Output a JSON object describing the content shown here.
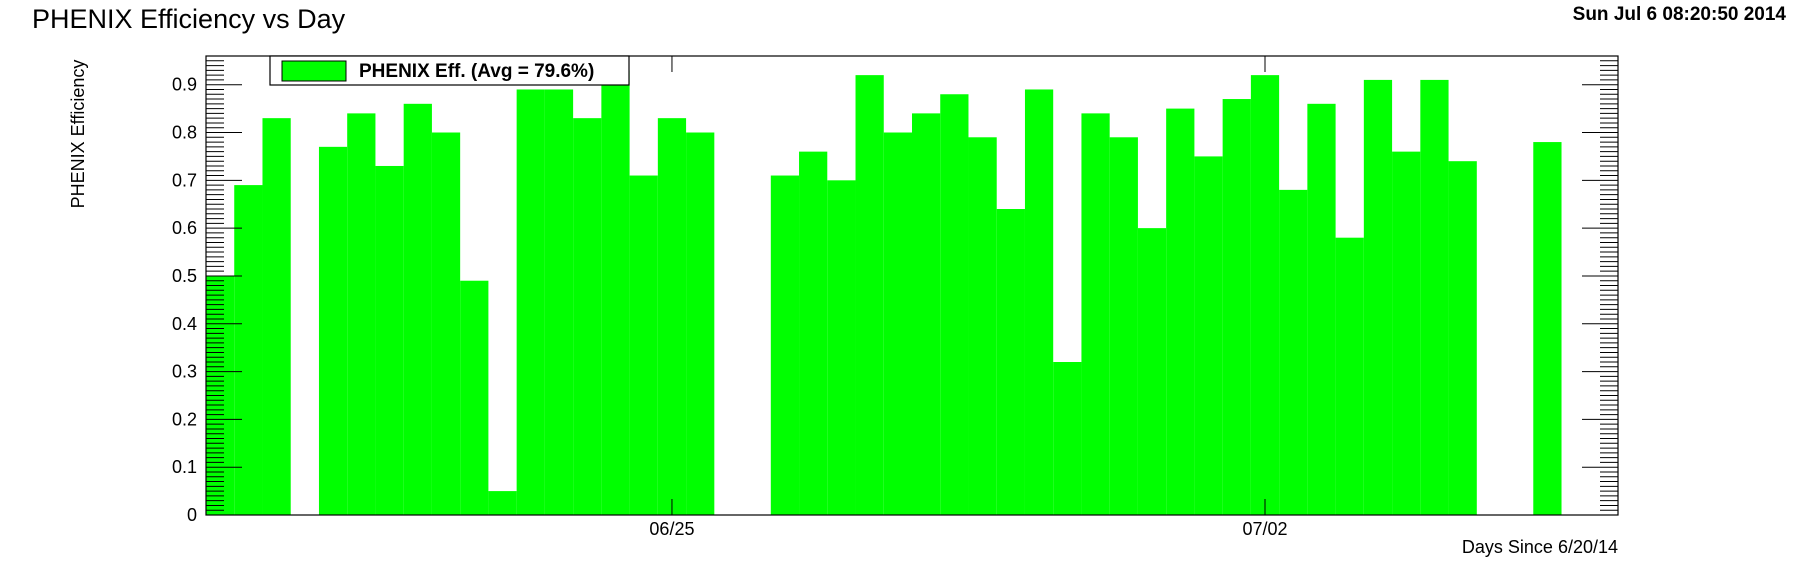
{
  "header": {
    "title": "PHENIX Efficiency vs Day",
    "timestamp": "Sun Jul  6 08:20:50 2014"
  },
  "colors": {
    "bar": "#00ff00",
    "axis": "#000000",
    "background": "#ffffff"
  },
  "chart_data": {
    "type": "bar",
    "title": "PHENIX Efficiency vs Day",
    "xlabel": "Days Since 6/20/14",
    "ylabel": "PHENIX Efficiency",
    "ylim": [
      0,
      0.96
    ],
    "xlim": [
      0,
      50
    ],
    "x_tick_labels": [
      {
        "x": 16.5,
        "label": "06/25"
      },
      {
        "x": 37.5,
        "label": "07/02"
      }
    ],
    "y_ticks": [
      0,
      0.1,
      0.2,
      0.3,
      0.4,
      0.5,
      0.6,
      0.7,
      0.8,
      0.9
    ],
    "y_tick_labels": [
      "0",
      "0.1",
      "0.2",
      "0.3",
      "0.4",
      "0.5",
      "0.6",
      "0.7",
      "0.8",
      "0.9"
    ],
    "legend": {
      "label": "PHENIX Eff. (Avg =  79.6%)",
      "placement": "top-left"
    },
    "grid": false,
    "bin_width": 1,
    "values": [
      0.5,
      0.69,
      0.83,
      0,
      0.77,
      0.84,
      0.73,
      0.86,
      0.8,
      0.49,
      0.05,
      0.89,
      0.89,
      0.83,
      0.93,
      0.71,
      0.83,
      0.8,
      0,
      0,
      0.71,
      0.76,
      0.7,
      0.92,
      0.8,
      0.84,
      0.88,
      0.79,
      0.64,
      0.89,
      0.32,
      0.84,
      0.79,
      0.6,
      0.85,
      0.75,
      0.87,
      0.92,
      0.68,
      0.86,
      0.58,
      0.91,
      0.76,
      0.91,
      0.74,
      0,
      0,
      0.78
    ]
  }
}
